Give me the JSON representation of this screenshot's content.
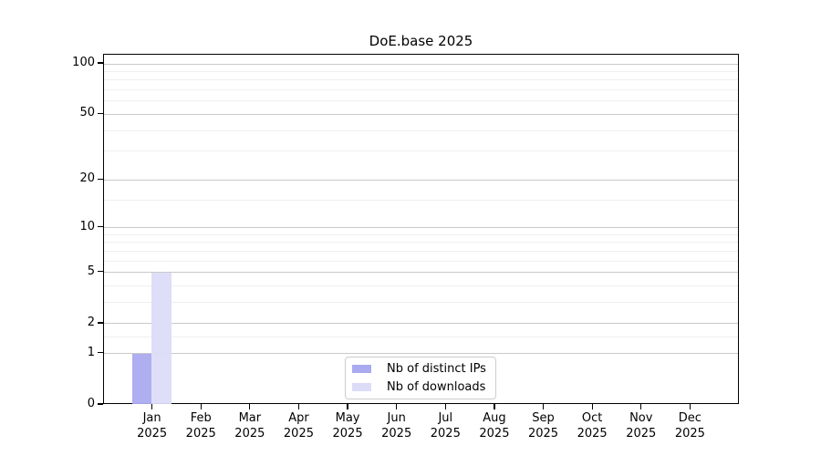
{
  "chart_data": {
    "type": "bar",
    "title": "DoE.base 2025",
    "categories": [
      "Jan 2025",
      "Feb 2025",
      "Mar 2025",
      "Apr 2025",
      "May 2025",
      "Jun 2025",
      "Jul 2025",
      "Aug 2025",
      "Sep 2025",
      "Oct 2025",
      "Nov 2025",
      "Dec 2025"
    ],
    "series": [
      {
        "name": "Nb of distinct IPs",
        "color": "#aaaaf0",
        "values": [
          1,
          0,
          0,
          0,
          0,
          0,
          0,
          0,
          0,
          0,
          0,
          0
        ]
      },
      {
        "name": "Nb of downloads",
        "color": "#dcdcf8",
        "values": [
          5,
          0,
          0,
          0,
          0,
          0,
          0,
          0,
          0,
          0,
          0,
          0
        ]
      }
    ],
    "xlabel": "",
    "ylabel": "",
    "yscale": "log1p",
    "ylim": [
      0,
      113
    ],
    "y_major_ticks": [
      0,
      1,
      2,
      5,
      10,
      20,
      50,
      100
    ],
    "y_minor_gridlines": [
      1.5,
      3,
      4,
      6,
      7,
      8,
      9,
      15,
      30,
      40,
      60,
      70,
      80,
      90
    ],
    "grid": true,
    "legend": {
      "position": "lower center",
      "items": [
        "Nb of distinct IPs",
        "Nb of downloads"
      ]
    },
    "colors": {
      "major_grid": "#c9c9c9",
      "minor_grid": "#efefef",
      "axis": "#000000",
      "background": "#ffffff"
    }
  }
}
